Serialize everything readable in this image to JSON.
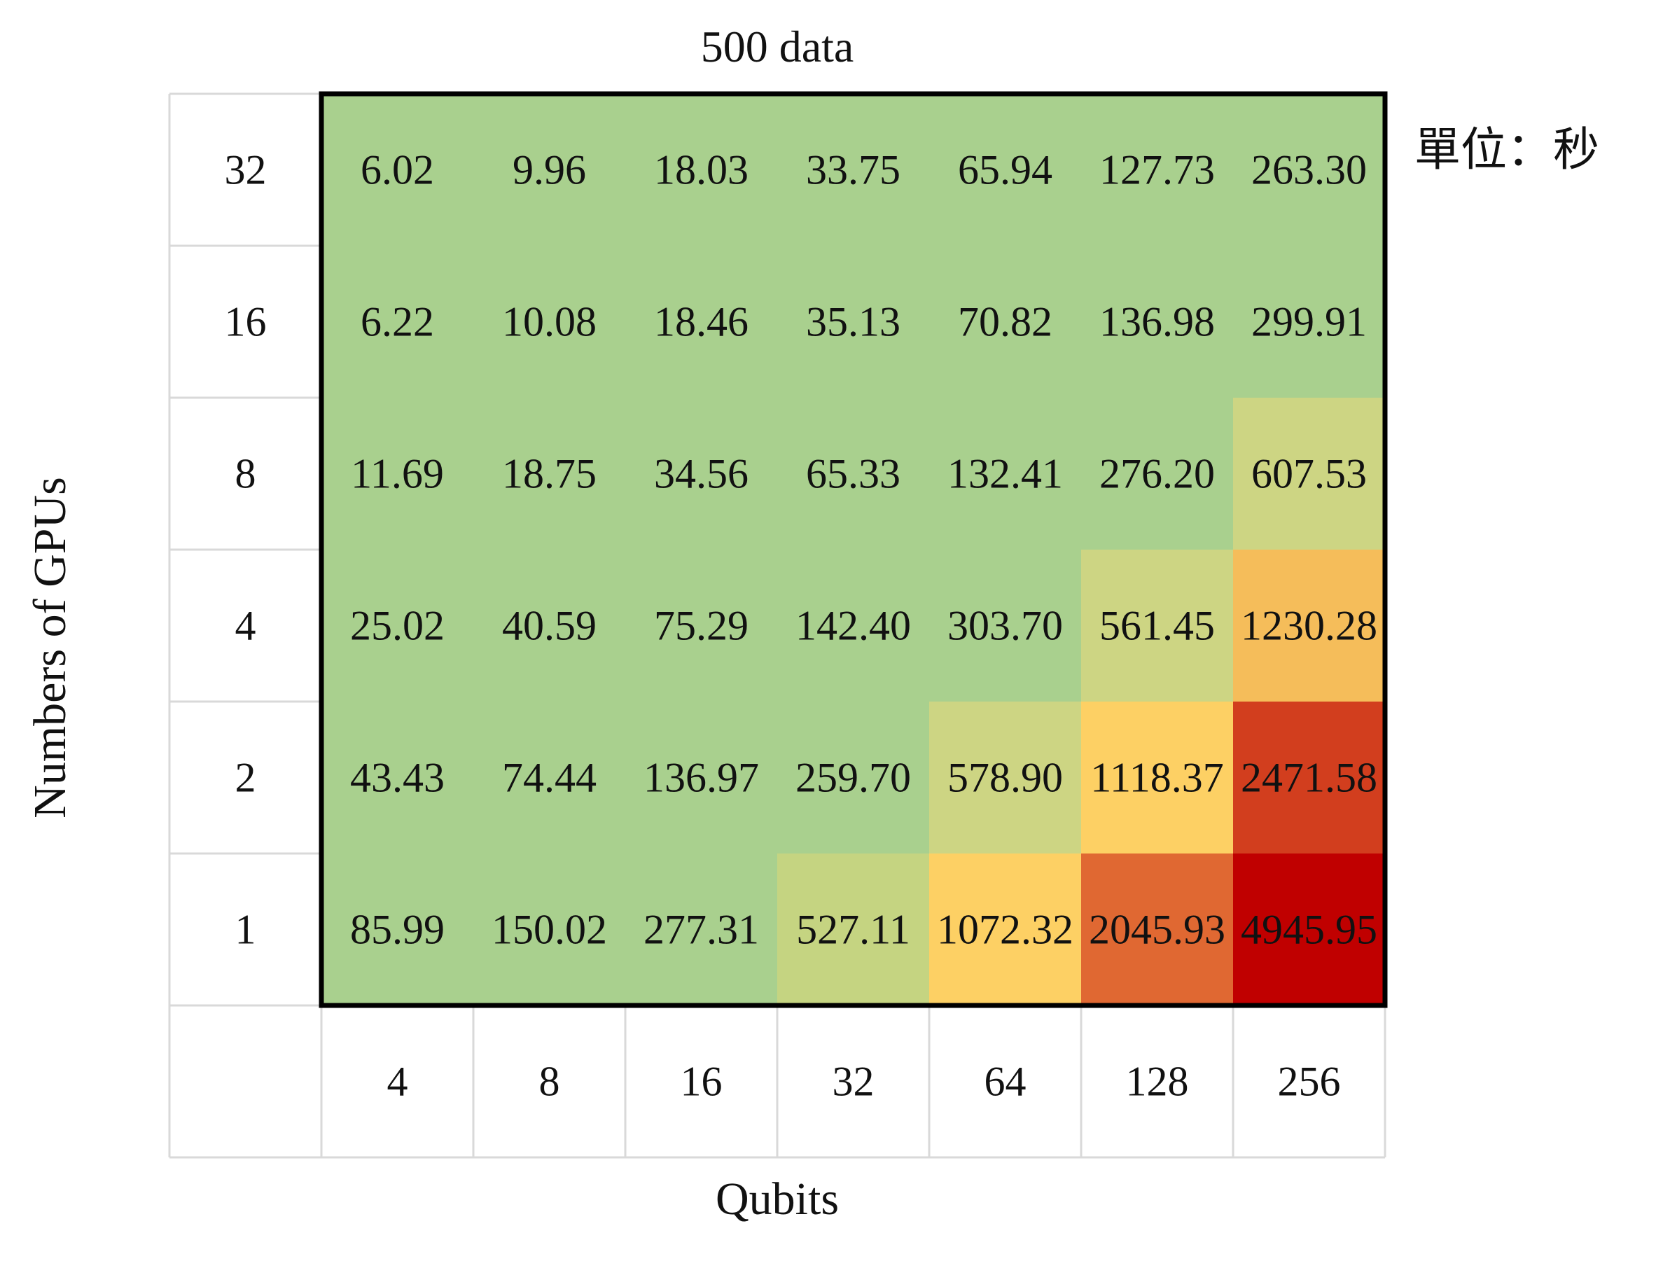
{
  "chart_data": {
    "type": "heatmap",
    "title": "500 data",
    "unit_label": "單位：秒",
    "xlabel": "Qubits",
    "ylabel": "Numbers of GPUs",
    "x_categories": [
      "4",
      "8",
      "16",
      "32",
      "64",
      "128",
      "256"
    ],
    "y_categories": [
      "32",
      "16",
      "8",
      "4",
      "2",
      "1"
    ],
    "values": [
      [
        "6.02",
        "9.96",
        "18.03",
        "33.75",
        "65.94",
        "127.73",
        "263.30"
      ],
      [
        "6.22",
        "10.08",
        "18.46",
        "35.13",
        "70.82",
        "136.98",
        "299.91"
      ],
      [
        "11.69",
        "18.75",
        "34.56",
        "65.33",
        "132.41",
        "276.20",
        "607.53"
      ],
      [
        "25.02",
        "40.59",
        "75.29",
        "142.40",
        "303.70",
        "561.45",
        "1230.28"
      ],
      [
        "43.43",
        "74.44",
        "136.97",
        "259.70",
        "578.90",
        "1118.37",
        "2471.58"
      ],
      [
        "85.99",
        "150.02",
        "277.31",
        "527.11",
        "1072.32",
        "2045.93",
        "4945.95"
      ]
    ],
    "colors": {
      "low": "#a9d08e",
      "light_olive": "#cdd583",
      "olive": "#c5d481",
      "orange": "#f5bd5a",
      "yellow_orange": "#fdd064",
      "red_orange": "#e06832",
      "red": "#d23e1e",
      "dark_red": "#c00000",
      "grid": "#d9d9d9",
      "border": "#000000"
    },
    "cell_colors": [
      [
        "low",
        "low",
        "low",
        "low",
        "low",
        "low",
        "low"
      ],
      [
        "low",
        "low",
        "low",
        "low",
        "low",
        "low",
        "low"
      ],
      [
        "low",
        "low",
        "low",
        "low",
        "low",
        "low",
        "light_olive"
      ],
      [
        "low",
        "low",
        "low",
        "low",
        "low",
        "light_olive",
        "orange"
      ],
      [
        "low",
        "low",
        "low",
        "low",
        "light_olive",
        "yellow_orange",
        "red"
      ],
      [
        "low",
        "low",
        "low",
        "olive",
        "yellow_orange",
        "red_orange",
        "dark_red"
      ]
    ]
  }
}
